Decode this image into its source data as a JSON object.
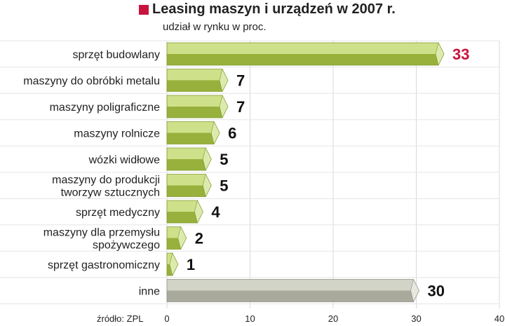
{
  "title": "Leasing maszyn i urządzeń w 2007 r.",
  "subtitle": "udział w rynku w proc.",
  "source": "źródło: ZPL",
  "colors": {
    "title_marker": "#c8143c",
    "bar_top": "#cfe08a",
    "bar_bottom": "#97b13c",
    "bar_end": "#dcebad",
    "other_top": "#d3d4c8",
    "other_bottom": "#a9aa9c",
    "highlight_label": "#c8143c",
    "grid": "#d9d9d9"
  },
  "chart_data": {
    "type": "bar",
    "orientation": "horizontal",
    "title": "Leasing maszyn i urządzeń w 2007 r.",
    "subtitle": "udział w rynku w proc.",
    "categories": [
      [
        "sprzęt budowlany"
      ],
      [
        "maszyny do obróbki metalu"
      ],
      [
        "maszyny poligraficzne"
      ],
      [
        "maszyny rolnicze"
      ],
      [
        "wózki widłowe"
      ],
      [
        "maszyny do produkcji",
        "tworzyw sztucznych"
      ],
      [
        "sprzęt medyczny"
      ],
      [
        "maszyny dla przemysłu",
        "spożywczego"
      ],
      [
        "sprzęt gastronomiczny"
      ],
      [
        "inne"
      ]
    ],
    "values": [
      33,
      7,
      7,
      6,
      5,
      5,
      4,
      2,
      1,
      30
    ],
    "value_labels": [
      "33",
      "7",
      "7",
      "6",
      "5",
      "5",
      "4",
      "2",
      "1",
      "30"
    ],
    "highlight": [
      true,
      false,
      false,
      false,
      false,
      false,
      false,
      false,
      false,
      false
    ],
    "other": [
      false,
      false,
      false,
      false,
      false,
      false,
      false,
      false,
      false,
      true
    ],
    "xlim": [
      0,
      40
    ],
    "xticks": [
      0,
      10,
      20,
      30,
      40
    ],
    "grid": true,
    "source": "źródło: ZPL"
  }
}
